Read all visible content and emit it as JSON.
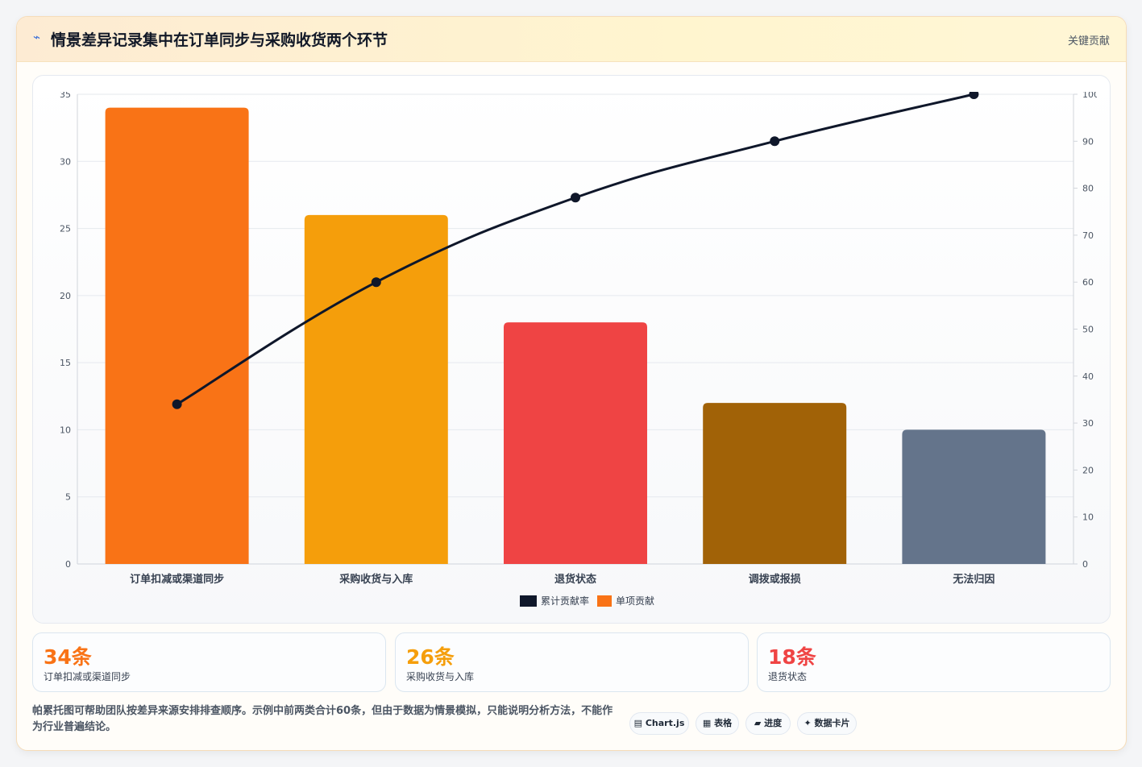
{
  "header": {
    "icon": "lightning-icon",
    "title": "情景差异记录集中在订单同步与采购收货两个环节",
    "tag": "关键贡献"
  },
  "chart_data": {
    "type": "bar",
    "categories": [
      "订单扣减或渠道同步",
      "采购收货与入库",
      "退货状态",
      "调拨或报损",
      "无法归因"
    ],
    "series": [
      {
        "name": "单项贡献",
        "type": "bar",
        "axis": "left",
        "values": [
          34,
          26,
          18,
          12,
          10
        ],
        "colors": [
          "#f97316",
          "#f59e0b",
          "#ef4444",
          "#a16207",
          "#64748b"
        ]
      },
      {
        "name": "累计贡献率",
        "type": "line",
        "axis": "right",
        "values": [
          34,
          60,
          78,
          90,
          100
        ],
        "color": "#0f172a"
      }
    ],
    "y_left": {
      "min": 0,
      "max": 35,
      "ticks": [
        0,
        5,
        10,
        15,
        20,
        25,
        30,
        35
      ]
    },
    "y_right": {
      "min": 0,
      "max": 100,
      "ticks": [
        0,
        10,
        20,
        30,
        40,
        50,
        60,
        70,
        80,
        90,
        100
      ]
    },
    "grid": true,
    "legend_position": "bottom",
    "legend": [
      {
        "label": "累计贡献率",
        "color": "#0f172a"
      },
      {
        "label": "单项贡献",
        "color": "#f97316"
      }
    ]
  },
  "stats": [
    {
      "value": "34条",
      "label": "订单扣减或渠道同步",
      "color": "#f97316"
    },
    {
      "value": "26条",
      "label": "采购收货与入库",
      "color": "#f59e0b"
    },
    {
      "value": "18条",
      "label": "退货状态",
      "color": "#ef4444"
    }
  ],
  "note": "帕累托图可帮助团队按差异来源安排排查顺序。示例中前两类合计60条，但由于数据为情景模拟，只能说明分析方法，不能作为行业普遍结论。",
  "pills": [
    {
      "icon": "calendar-icon",
      "glyph": "▤",
      "label": "Chart.js"
    },
    {
      "icon": "table-icon",
      "glyph": "▦",
      "label": "表格"
    },
    {
      "icon": "progress-icon",
      "glyph": "▰",
      "label": "进度"
    },
    {
      "icon": "sparkle-icon",
      "glyph": "✦",
      "label": "数据卡片"
    }
  ]
}
